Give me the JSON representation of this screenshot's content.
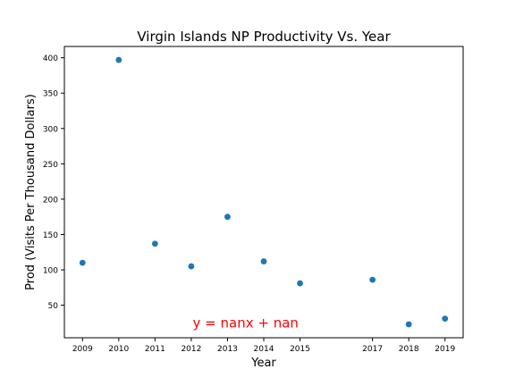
{
  "chart_data": {
    "type": "scatter",
    "title": "Virgin Islands NP Productivity Vs. Year",
    "xlabel": "Year",
    "ylabel": "Prod (Visits Per Thousand Dollars)",
    "xlim": [
      2008.5,
      2019.5
    ],
    "ylim": [
      4,
      416
    ],
    "xticks": [
      2009,
      2010,
      2011,
      2012,
      2013,
      2014,
      2015,
      2017,
      2018,
      2019
    ],
    "yticks": [
      50,
      100,
      150,
      200,
      250,
      300,
      350,
      400
    ],
    "x": [
      2009,
      2010,
      2011,
      2012,
      2013,
      2014,
      2015,
      2017,
      2018,
      2019
    ],
    "y": [
      110,
      397,
      137,
      105,
      175,
      112,
      81,
      86,
      23,
      31
    ],
    "marker_color": "#1f77b4",
    "annotation": {
      "text": "y = nanx + nan",
      "x": 2013.5,
      "y": 25,
      "color": "#ff0000"
    },
    "grid": false,
    "legend": "none"
  }
}
